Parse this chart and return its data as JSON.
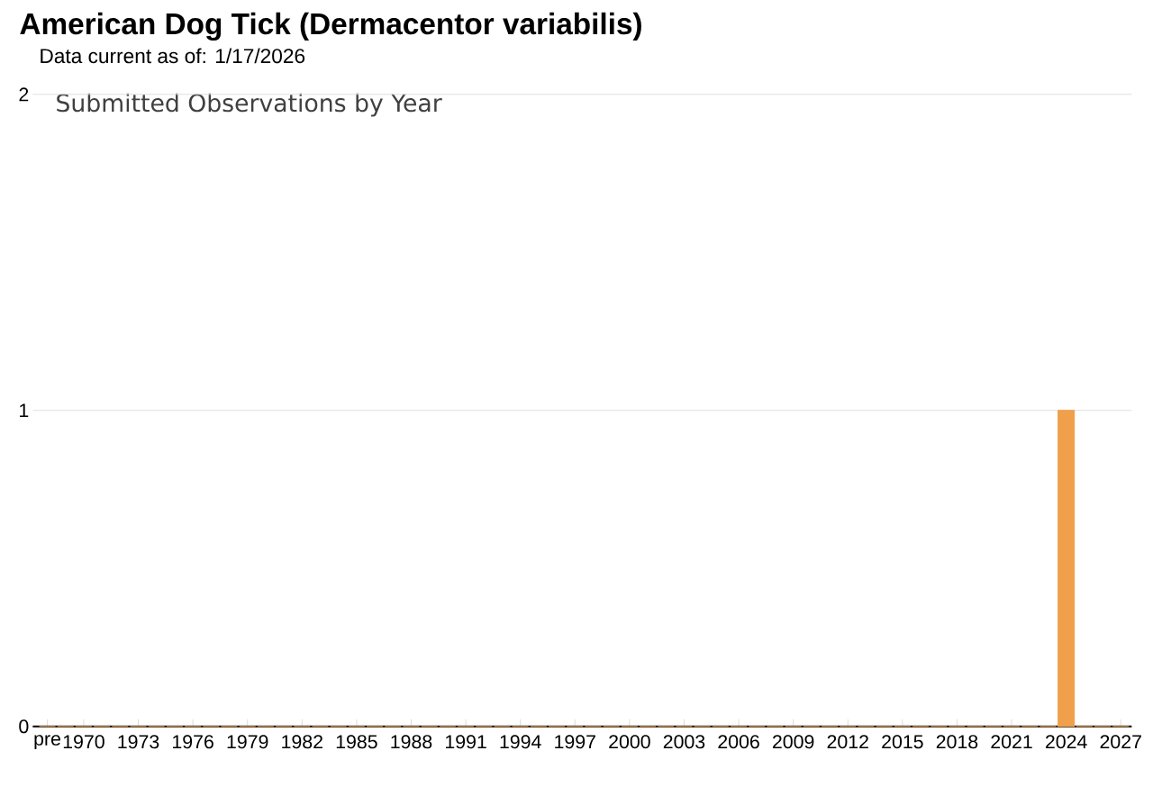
{
  "chart_data": {
    "type": "bar",
    "title": "American Dog Tick   (Dermacentor variabilis)",
    "subtitle": "Data current as of: 1/17/2026",
    "annotations": [
      "Submitted Observations by Year"
    ],
    "categories": [
      "pre",
      null,
      "1970",
      null,
      null,
      "1973",
      null,
      null,
      "1976",
      null,
      null,
      "1979",
      null,
      null,
      "1982",
      null,
      null,
      "1985",
      null,
      null,
      "1988",
      null,
      null,
      "1991",
      null,
      null,
      "1994",
      null,
      null,
      "1997",
      null,
      null,
      "2000",
      null,
      null,
      "2003",
      null,
      null,
      "2006",
      null,
      null,
      "2009",
      null,
      null,
      "2012",
      null,
      null,
      "2015",
      null,
      null,
      "2018",
      null,
      null,
      "2021",
      null,
      null,
      "2024",
      null,
      null,
      "2027"
    ],
    "values": [
      0,
      0,
      0,
      0,
      0,
      0,
      0,
      0,
      0,
      0,
      0,
      0,
      0,
      0,
      0,
      0,
      0,
      0,
      0,
      0,
      0,
      0,
      0,
      0,
      0,
      0,
      0,
      0,
      0,
      0,
      0,
      0,
      0,
      0,
      0,
      0,
      0,
      0,
      0,
      0,
      0,
      0,
      0,
      0,
      0,
      0,
      0,
      0,
      0,
      0,
      0,
      0,
      0,
      0,
      0,
      0,
      1,
      0,
      0,
      0
    ],
    "color": "#f0a04b",
    "ylim": [
      0,
      2
    ],
    "yticks": [
      0,
      1,
      2
    ],
    "grid": "y"
  }
}
